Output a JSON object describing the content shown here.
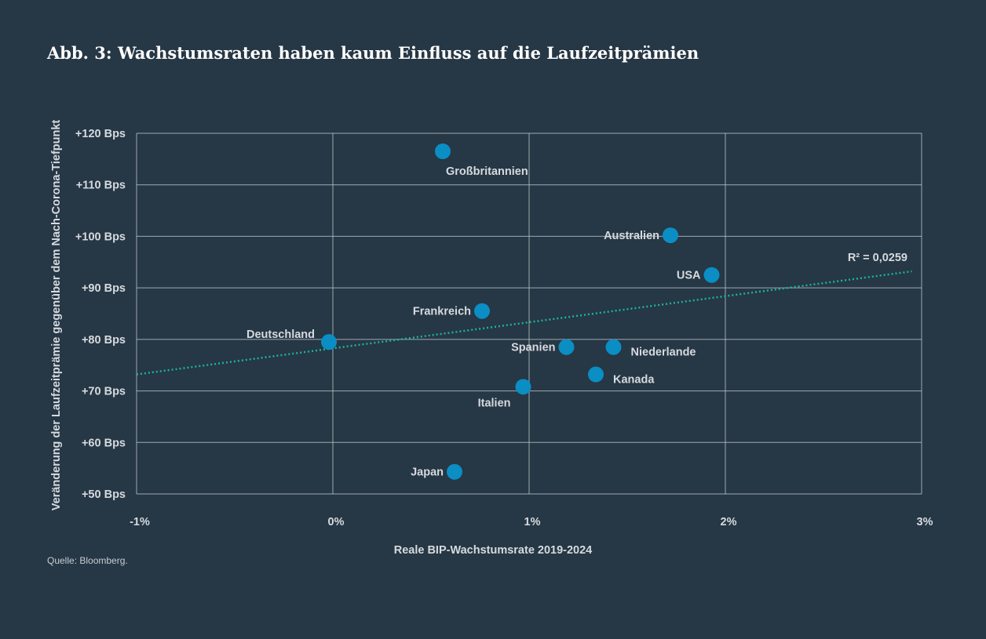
{
  "title": "Abb. 3: Wachstumsraten haben kaum Einfluss auf die Laufzeitprämien",
  "source": "Quelle: Bloomberg.",
  "colors": {
    "background": "#263745",
    "point": "#0a8ec4",
    "trend": "#1bb39b",
    "text": "#d6dadf"
  },
  "chart_data": {
    "type": "scatter",
    "xlabel": "Reale BIP-Wachstumsrate 2019-2024",
    "ylabel": "Veränderung der Laufzeitprämie gegenüber dem Nach-Corona-Tiefpunkt",
    "xlim": [
      -1,
      3
    ],
    "ylim": [
      50,
      120
    ],
    "x_ticks": [
      {
        "value": -1,
        "label": "-1%"
      },
      {
        "value": 0,
        "label": "0%"
      },
      {
        "value": 1,
        "label": "1%"
      },
      {
        "value": 2,
        "label": "2%"
      },
      {
        "value": 3,
        "label": "3%"
      }
    ],
    "y_ticks": [
      {
        "value": 120,
        "label": "+120 Bps"
      },
      {
        "value": 110,
        "label": "+110 Bps"
      },
      {
        "value": 100,
        "label": "+100 Bps"
      },
      {
        "value": 90,
        "label": "+90 Bps"
      },
      {
        "value": 80,
        "label": "+80 Bps"
      },
      {
        "value": 70,
        "label": "+70 Bps"
      },
      {
        "value": 60,
        "label": "+60 Bps"
      },
      {
        "value": 50,
        "label": "+50 Bps"
      }
    ],
    "grid": true,
    "points": [
      {
        "label": "Großbritannien",
        "x": 0.56,
        "y": 116.5,
        "label_pos": "below-right"
      },
      {
        "label": "Australien",
        "x": 1.72,
        "y": 100.2,
        "label_pos": "left"
      },
      {
        "label": "USA",
        "x": 1.93,
        "y": 92.5,
        "label_pos": "left"
      },
      {
        "label": "Frankreich",
        "x": 0.76,
        "y": 85.5,
        "label_pos": "left"
      },
      {
        "label": "Deutschland",
        "x": -0.02,
        "y": 79.5,
        "label_pos": "upper-left"
      },
      {
        "label": "Spanien",
        "x": 1.19,
        "y": 78.5,
        "label_pos": "left"
      },
      {
        "label": "Niederlande",
        "x": 1.43,
        "y": 78.5,
        "label_pos": "right"
      },
      {
        "label": "Kanada",
        "x": 1.34,
        "y": 73.2,
        "label_pos": "right"
      },
      {
        "label": "Italien",
        "x": 0.97,
        "y": 70.8,
        "label_pos": "below-left"
      },
      {
        "label": "Japan",
        "x": 0.62,
        "y": 54.3,
        "label_pos": "left"
      }
    ],
    "trendline": {
      "x": [
        -1,
        2.95
      ],
      "y": [
        73.2,
        93.2
      ],
      "style": "dotted",
      "r2_label": "R² = 0,0259"
    }
  }
}
